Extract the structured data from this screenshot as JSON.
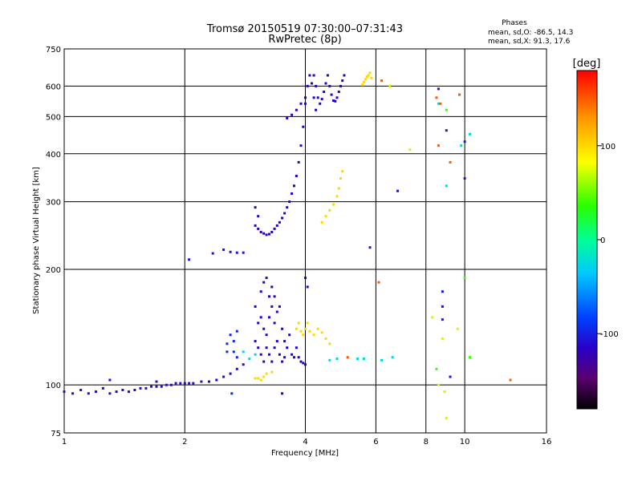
{
  "chart_data": {
    "type": "scatter",
    "title": "Tromsø 20150519 07:30:00–07:31:43",
    "subtitle": "RwPretec (8p)",
    "xlabel": "Frequency [MHz]",
    "ylabel": "Stationary phase Virtual Height [km]",
    "x_scale": "log",
    "y_scale": "log",
    "xlim": [
      1,
      16
    ],
    "ylim": [
      75,
      750
    ],
    "x_ticks": [
      1,
      2,
      4,
      6,
      8,
      10,
      16
    ],
    "x_tick_labels": [
      "1",
      "2",
      "4",
      "6",
      "8",
      "10",
      "16"
    ],
    "y_ticks": [
      75,
      100,
      200,
      300,
      400,
      500,
      600,
      750
    ],
    "y_tick_labels": [
      "75",
      "100",
      "200",
      "300",
      "400",
      "500",
      "600",
      "750"
    ],
    "grid": true,
    "info": {
      "heading": "Phases",
      "line1": "mean, sd,O: -86.5, 14.3",
      "line2": "mean, sd,X:  91.3, 17.6"
    },
    "colorbar": {
      "label": "[deg]",
      "range": [
        -180,
        180
      ],
      "ticks": [
        100,
        0,
        -100
      ],
      "tick_labels": [
        "100",
        "0",
        "-100"
      ]
    },
    "series": [
      {
        "phase": -110,
        "points": [
          [
            1.0,
            96
          ],
          [
            1.05,
            95
          ],
          [
            1.1,
            97
          ],
          [
            1.15,
            95
          ],
          [
            1.2,
            96
          ],
          [
            1.25,
            98
          ],
          [
            1.3,
            95
          ],
          [
            1.35,
            96
          ],
          [
            1.4,
            97
          ],
          [
            1.45,
            96
          ],
          [
            1.5,
            97
          ],
          [
            1.55,
            98
          ],
          [
            1.6,
            98
          ],
          [
            1.65,
            99
          ],
          [
            1.7,
            99
          ],
          [
            1.75,
            99
          ],
          [
            1.8,
            100
          ],
          [
            1.85,
            100
          ],
          [
            1.9,
            101
          ],
          [
            1.95,
            101
          ],
          [
            2.0,
            101
          ],
          [
            2.05,
            101
          ],
          [
            2.1,
            101
          ],
          [
            2.2,
            102
          ],
          [
            2.3,
            102
          ],
          [
            2.4,
            103
          ],
          [
            2.5,
            105
          ],
          [
            2.6,
            107
          ],
          [
            2.7,
            110
          ],
          [
            2.8,
            113
          ]
        ]
      },
      {
        "phase": -95,
        "points": [
          [
            2.55,
            128
          ],
          [
            2.6,
            135
          ],
          [
            2.65,
            130
          ],
          [
            2.7,
            138
          ],
          [
            2.55,
            122
          ],
          [
            2.65,
            122
          ],
          [
            2.7,
            118
          ],
          [
            2.62,
            95
          ]
        ]
      },
      {
        "phase": -115,
        "points": [
          [
            3.0,
            160
          ],
          [
            3.1,
            175
          ],
          [
            3.15,
            185
          ],
          [
            3.2,
            190
          ],
          [
            3.25,
            170
          ],
          [
            3.3,
            180
          ],
          [
            3.35,
            170
          ],
          [
            3.05,
            145
          ],
          [
            3.1,
            150
          ],
          [
            3.15,
            140
          ],
          [
            3.2,
            135
          ],
          [
            3.25,
            150
          ],
          [
            3.3,
            160
          ],
          [
            3.35,
            145
          ],
          [
            3.4,
            155
          ],
          [
            3.45,
            160
          ],
          [
            3.5,
            140
          ],
          [
            3.55,
            130
          ],
          [
            3.0,
            130
          ],
          [
            3.05,
            125
          ],
          [
            3.1,
            120
          ],
          [
            3.15,
            115
          ],
          [
            3.2,
            125
          ],
          [
            3.25,
            120
          ],
          [
            3.3,
            115
          ],
          [
            3.35,
            125
          ],
          [
            3.4,
            130
          ],
          [
            3.45,
            120
          ],
          [
            3.5,
            115
          ],
          [
            3.55,
            118
          ],
          [
            3.6,
            125
          ],
          [
            3.65,
            135
          ],
          [
            3.7,
            120
          ],
          [
            3.75,
            118
          ],
          [
            3.8,
            125
          ],
          [
            3.85,
            118
          ],
          [
            3.9,
            115
          ],
          [
            3.95,
            114
          ],
          [
            4.0,
            113
          ],
          [
            3.5,
            95
          ],
          [
            4.0,
            190
          ],
          [
            4.05,
            180
          ]
        ]
      },
      {
        "phase": -120,
        "points": [
          [
            3.0,
            260
          ],
          [
            3.05,
            255
          ],
          [
            3.1,
            250
          ],
          [
            3.15,
            248
          ],
          [
            3.2,
            246
          ],
          [
            3.25,
            247
          ],
          [
            3.3,
            250
          ],
          [
            3.35,
            255
          ],
          [
            3.4,
            260
          ],
          [
            3.45,
            265
          ],
          [
            3.5,
            272
          ],
          [
            3.55,
            280
          ],
          [
            3.6,
            290
          ],
          [
            3.65,
            300
          ],
          [
            3.7,
            315
          ],
          [
            3.75,
            330
          ],
          [
            3.8,
            350
          ],
          [
            3.85,
            380
          ],
          [
            3.9,
            420
          ],
          [
            3.95,
            470
          ],
          [
            4.0,
            540
          ],
          [
            4.05,
            600
          ],
          [
            4.1,
            640
          ],
          [
            3.0,
            290
          ],
          [
            3.05,
            275
          ],
          [
            3.6,
            495
          ],
          [
            3.7,
            505
          ],
          [
            3.8,
            520
          ],
          [
            3.9,
            540
          ],
          [
            4.0,
            560
          ]
        ]
      },
      {
        "phase": -118,
        "points": [
          [
            4.15,
            610
          ],
          [
            4.2,
            640
          ],
          [
            4.25,
            600
          ],
          [
            4.3,
            560
          ],
          [
            4.35,
            540
          ],
          [
            4.4,
            555
          ],
          [
            4.45,
            580
          ],
          [
            4.5,
            610
          ],
          [
            4.55,
            640
          ],
          [
            4.6,
            600
          ],
          [
            4.65,
            570
          ],
          [
            4.7,
            550
          ],
          [
            4.75,
            548
          ],
          [
            4.8,
            560
          ],
          [
            4.85,
            580
          ],
          [
            4.9,
            600
          ],
          [
            4.95,
            620
          ],
          [
            5.0,
            640
          ],
          [
            4.2,
            560
          ],
          [
            4.25,
            520
          ]
        ]
      },
      {
        "phase": -105,
        "points": [
          [
            2.35,
            220
          ],
          [
            2.5,
            225
          ],
          [
            2.6,
            222
          ],
          [
            2.7,
            221
          ],
          [
            2.8,
            221
          ],
          [
            2.05,
            212
          ],
          [
            1.7,
            102
          ],
          [
            1.3,
            103
          ],
          [
            5.8,
            228
          ],
          [
            6.8,
            320
          ],
          [
            8.8,
            175
          ],
          [
            8.8,
            160
          ],
          [
            8.8,
            148
          ],
          [
            9.2,
            105
          ],
          [
            8.6,
            590
          ],
          [
            10.0,
            430
          ],
          [
            9.0,
            460
          ],
          [
            10.0,
            345
          ]
        ]
      },
      {
        "phase": 100,
        "points": [
          [
            4.4,
            265
          ],
          [
            4.5,
            275
          ],
          [
            4.6,
            285
          ],
          [
            4.7,
            295
          ],
          [
            4.8,
            310
          ],
          [
            4.85,
            325
          ],
          [
            4.9,
            345
          ],
          [
            4.95,
            360
          ],
          [
            5.55,
            605
          ],
          [
            5.6,
            615
          ],
          [
            5.65,
            625
          ],
          [
            5.7,
            635
          ],
          [
            5.75,
            640
          ],
          [
            5.8,
            650
          ],
          [
            5.85,
            630
          ],
          [
            3.0,
            104
          ],
          [
            3.05,
            104
          ],
          [
            3.1,
            103
          ],
          [
            3.15,
            105
          ],
          [
            3.2,
            107
          ],
          [
            3.3,
            108
          ],
          [
            3.8,
            140
          ],
          [
            3.85,
            145
          ],
          [
            3.9,
            138
          ],
          [
            3.95,
            135
          ],
          [
            4.0,
            140
          ],
          [
            4.05,
            145
          ],
          [
            4.1,
            138
          ],
          [
            4.2,
            135
          ],
          [
            4.3,
            140
          ],
          [
            4.4,
            137
          ],
          [
            4.5,
            132
          ],
          [
            4.6,
            128
          ]
        ]
      },
      {
        "phase": -25,
        "points": [
          [
            2.8,
            122
          ],
          [
            2.9,
            117
          ],
          [
            3.0,
            120
          ],
          [
            4.6,
            116
          ],
          [
            4.8,
            117
          ],
          [
            5.4,
            117
          ],
          [
            5.6,
            117
          ],
          [
            6.2,
            116
          ],
          [
            6.6,
            118
          ],
          [
            9.8,
            420
          ],
          [
            10.3,
            450
          ],
          [
            9.0,
            330
          ],
          [
            8.6,
            540
          ]
        ]
      },
      {
        "phase": 70,
        "points": [
          [
            8.6,
            100
          ],
          [
            8.9,
            96
          ],
          [
            9.0,
            82
          ],
          [
            6.5,
            600
          ],
          [
            7.3,
            410
          ],
          [
            8.3,
            150
          ],
          [
            8.8,
            132
          ],
          [
            9.6,
            140
          ]
        ]
      },
      {
        "phase": 150,
        "points": [
          [
            6.2,
            620
          ],
          [
            8.5,
            560
          ],
          [
            8.7,
            540
          ],
          [
            8.6,
            420
          ],
          [
            9.2,
            380
          ],
          [
            9.7,
            570
          ],
          [
            13.0,
            103
          ],
          [
            6.1,
            185
          ],
          [
            5.1,
            118
          ]
        ]
      },
      {
        "phase": 40,
        "points": [
          [
            9.0,
            520
          ],
          [
            10.0,
            190
          ],
          [
            8.5,
            110
          ],
          [
            10.3,
            118
          ]
        ]
      }
    ]
  }
}
